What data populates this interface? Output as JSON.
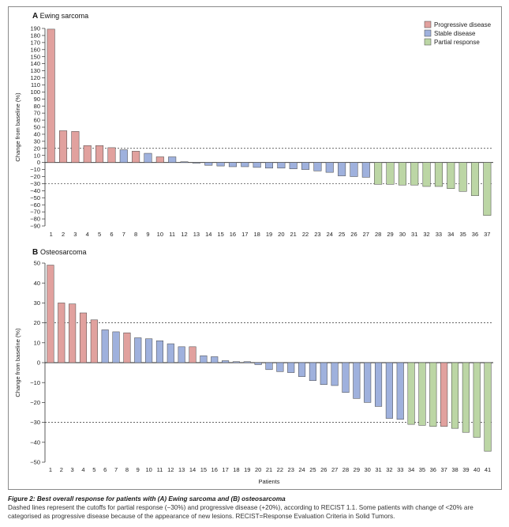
{
  "colors": {
    "progressive": "#e1a19e",
    "stable": "#9fb1dd",
    "partial": "#bcd6a5",
    "bar_stroke": "#444444"
  },
  "chart_data": [
    {
      "type": "bar",
      "panel_letter": "A",
      "title": "Ewing sarcoma",
      "xlabel": "",
      "ylabel": "Change from baseline (%)",
      "ylim": [
        -90,
        190
      ],
      "ytick_step": 10,
      "cutoff_lines": [
        20,
        -30
      ],
      "legend": [
        {
          "key": "progressive",
          "label": "Progressive disease"
        },
        {
          "key": "stable",
          "label": "Stable disease"
        },
        {
          "key": "partial",
          "label": "Partial response"
        }
      ],
      "legend_position": "top-right",
      "categories": [
        "1",
        "2",
        "3",
        "4",
        "5",
        "6",
        "7",
        "8",
        "9",
        "10",
        "11",
        "12",
        "13",
        "14",
        "15",
        "16",
        "17",
        "18",
        "19",
        "20",
        "21",
        "22",
        "23",
        "24",
        "25",
        "26",
        "27",
        "28",
        "29",
        "30",
        "31",
        "32",
        "33",
        "34",
        "35",
        "36",
        "37"
      ],
      "values": [
        189,
        45,
        44,
        24,
        24,
        21,
        18,
        16,
        13,
        8,
        8,
        1,
        -1,
        -4,
        -5,
        -6,
        -6,
        -7,
        -8,
        -8,
        -9,
        -10,
        -12,
        -14,
        -19,
        -20,
        -21,
        -31,
        -31,
        -32,
        -32,
        -34,
        -34,
        -37,
        -41,
        -47,
        -75
      ],
      "status": [
        "progressive",
        "progressive",
        "progressive",
        "progressive",
        "progressive",
        "progressive",
        "stable",
        "progressive",
        "stable",
        "progressive",
        "stable",
        "stable",
        "stable",
        "stable",
        "stable",
        "stable",
        "stable",
        "stable",
        "stable",
        "stable",
        "stable",
        "stable",
        "stable",
        "stable",
        "stable",
        "stable",
        "stable",
        "partial",
        "partial",
        "partial",
        "partial",
        "partial",
        "partial",
        "partial",
        "partial",
        "partial",
        "partial"
      ]
    },
    {
      "type": "bar",
      "panel_letter": "B",
      "title": "Osteosarcoma",
      "xlabel": "Patients",
      "ylabel": "Change from baseline (%)",
      "ylim": [
        -50,
        50
      ],
      "ytick_step": 10,
      "cutoff_lines": [
        20,
        -30
      ],
      "categories": [
        "1",
        "2",
        "3",
        "4",
        "5",
        "6",
        "7",
        "8",
        "9",
        "10",
        "11",
        "12",
        "13",
        "14",
        "15",
        "16",
        "17",
        "18",
        "19",
        "20",
        "21",
        "22",
        "23",
        "24",
        "25",
        "26",
        "27",
        "28",
        "29",
        "30",
        "31",
        "32",
        "33",
        "34",
        "35",
        "36",
        "37",
        "38",
        "39",
        "40",
        "41"
      ],
      "values": [
        49,
        30,
        29.5,
        25,
        21.5,
        16.5,
        15.5,
        15,
        12.5,
        12,
        11,
        9.5,
        8,
        8,
        3.5,
        3,
        1,
        0.5,
        0.5,
        -1,
        -3.5,
        -4.5,
        -5,
        -7,
        -9,
        -11,
        -11.5,
        -15,
        -18,
        -20,
        -22,
        -28,
        -28.5,
        -31,
        -31.5,
        -32,
        -32,
        -33,
        -35,
        -37.5,
        -44.5
      ],
      "status": [
        "progressive",
        "progressive",
        "progressive",
        "progressive",
        "progressive",
        "stable",
        "stable",
        "progressive",
        "stable",
        "stable",
        "stable",
        "stable",
        "stable",
        "progressive",
        "stable",
        "stable",
        "stable",
        "stable",
        "stable",
        "stable",
        "stable",
        "stable",
        "stable",
        "stable",
        "stable",
        "stable",
        "stable",
        "stable",
        "stable",
        "stable",
        "stable",
        "stable",
        "stable",
        "partial",
        "partial",
        "partial",
        "progressive",
        "partial",
        "partial",
        "partial",
        "partial"
      ]
    }
  ],
  "caption": {
    "title": "Figure 2: Best overall response for patients with (A) Ewing sarcoma and (B) osteosarcoma",
    "text": "Dashed lines represent the cutoffs for partial response (−30%) and progressive disease (+20%), according to RECIST 1.1. Some patients with change of <20% are categorised as progressive disease because of the appearance of new lesions. RECIST=Response Evaluation Criteria in Solid Tumors."
  }
}
